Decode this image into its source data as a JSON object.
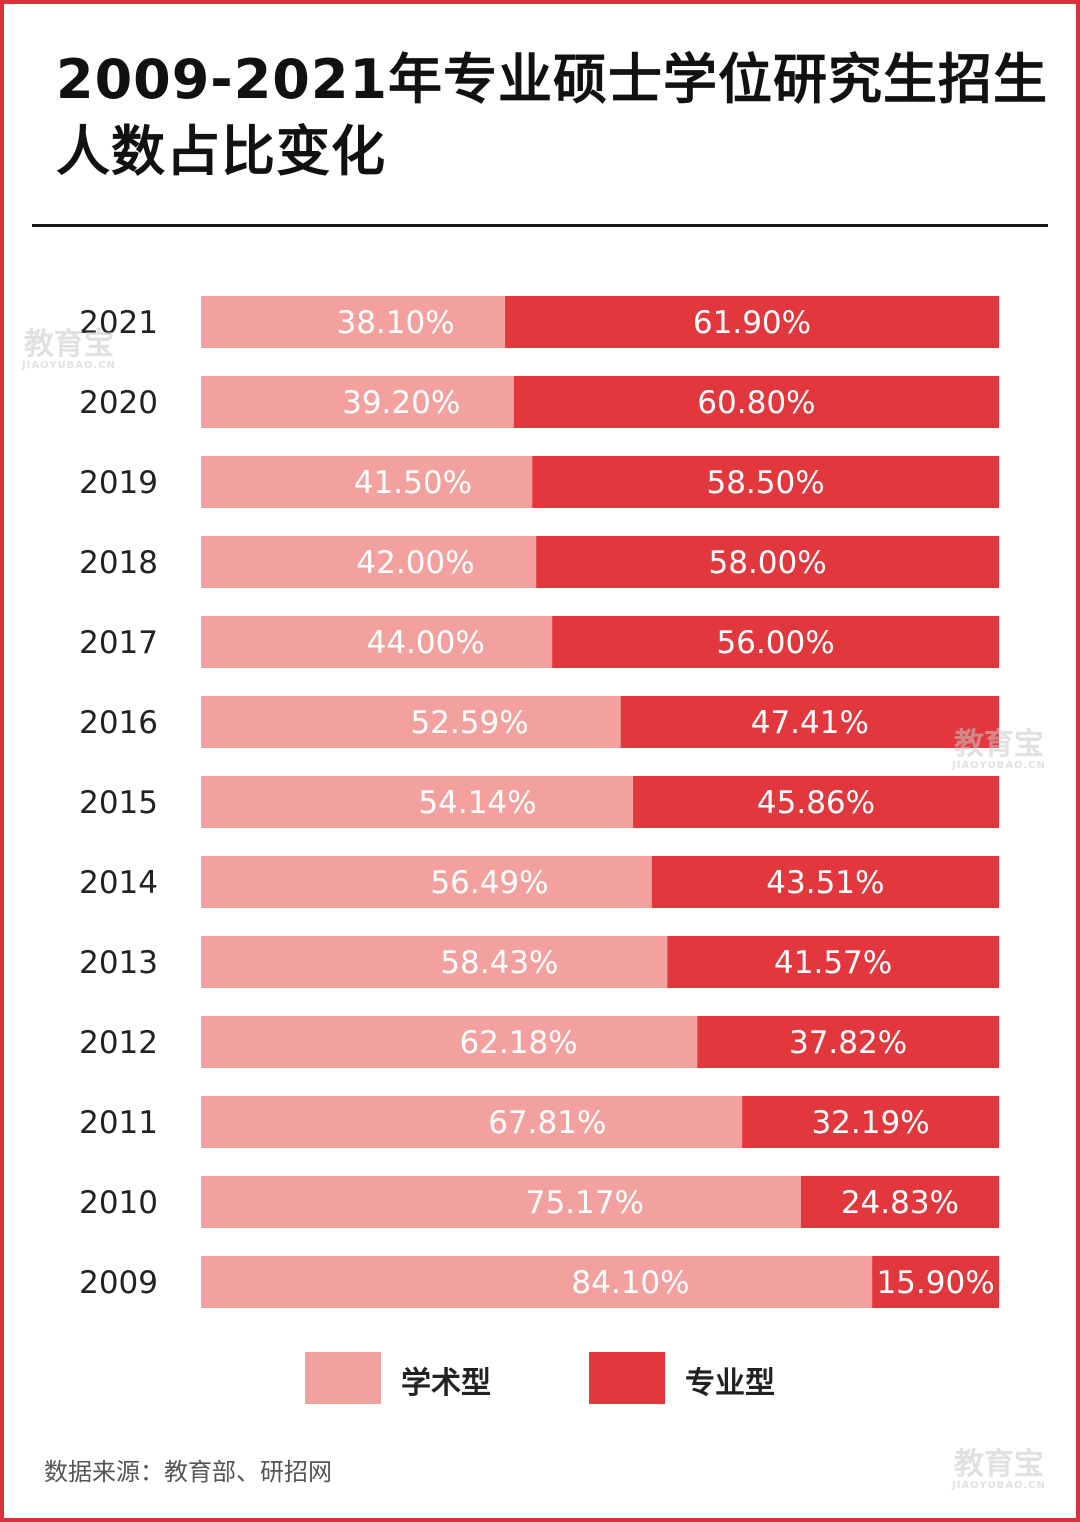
{
  "title": "2009-2021年专业硕士学位研究生招生人数占比变化",
  "source": "数据来源：教育部、研招网",
  "watermark": {
    "text": "教育宝",
    "sub": "JIAOYUBAO.CN"
  },
  "colors": {
    "academic": "#f2a19f",
    "professional": "#e2383d",
    "border": "#d9303a"
  },
  "chart_data": {
    "type": "bar",
    "orientation": "horizontal",
    "stacked": true,
    "categories": [
      "2021",
      "2020",
      "2019",
      "2018",
      "2017",
      "2016",
      "2015",
      "2014",
      "2013",
      "2012",
      "2011",
      "2010",
      "2009"
    ],
    "series": [
      {
        "name": "学术型",
        "values": [
          38.1,
          39.2,
          41.5,
          42.0,
          44.0,
          52.59,
          54.14,
          56.49,
          58.43,
          62.18,
          67.81,
          75.17,
          84.1
        ],
        "labels": [
          "38.10%",
          "39.20%",
          "41.50%",
          "42.00%",
          "44.00%",
          "52.59%",
          "54.14%",
          "56.49%",
          "58.43%",
          "62.18%",
          "67.81%",
          "75.17%",
          "84.10%"
        ]
      },
      {
        "name": "专业型",
        "values": [
          61.9,
          60.8,
          58.5,
          58.0,
          56.0,
          47.41,
          45.86,
          43.51,
          41.57,
          37.82,
          32.19,
          24.83,
          15.9
        ],
        "labels": [
          "61.90%",
          "60.80%",
          "58.50%",
          "58.00%",
          "56.00%",
          "47.41%",
          "45.86%",
          "43.51%",
          "41.57%",
          "37.82%",
          "32.19%",
          "24.83%",
          "15.90%"
        ]
      }
    ],
    "xlim": [
      0,
      100
    ],
    "grid": false,
    "legend": "bottom"
  }
}
